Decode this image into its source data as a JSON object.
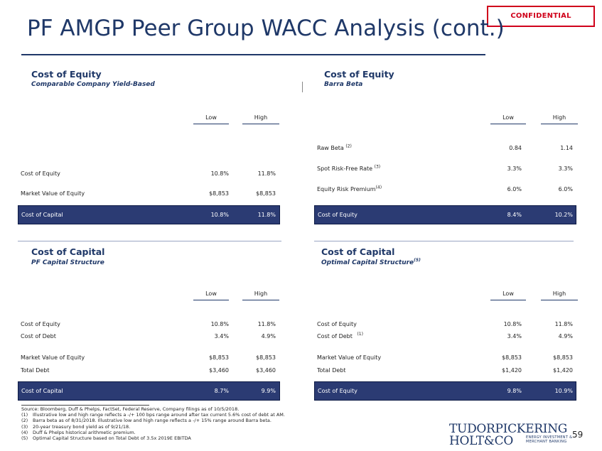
{
  "confidential": "CONFIDENTIAL",
  "title": "PF AMGP Peer Group WACC Analysis (cont.)",
  "cols": {
    "low": "Low",
    "high": "High"
  },
  "p1": {
    "heading": "Cost of Equity",
    "subheading": "Comparable Company Yield-Based",
    "rows": [
      {
        "label": "Cost of Equity",
        "low": "10.8%",
        "high": "11.8%"
      },
      {
        "label": "Market Value of Equity",
        "low": "$8,853",
        "high": "$8,853"
      }
    ],
    "total": {
      "label": "Cost of Capital",
      "low": "10.8%",
      "high": "11.8%"
    }
  },
  "p2": {
    "heading": "Cost of Equity",
    "subheading": "Barra Beta",
    "rows": [
      {
        "label": "Raw Beta",
        "sup": "(2)",
        "low": "0.84",
        "high": "1.14"
      },
      {
        "label": "Spot Risk-Free Rate",
        "sup": "(3)",
        "low": "3.3%",
        "high": "3.3%"
      },
      {
        "label": "Equity Risk Premium",
        "sup": "(4)",
        "low": "6.0%",
        "high": "6.0%"
      }
    ],
    "total": {
      "label": "Cost of Equity",
      "low": "8.4%",
      "high": "10.2%"
    }
  },
  "p3": {
    "heading": "Cost of Capital",
    "subheading": "PF Capital Structure",
    "rows": [
      {
        "label": "Cost of Equity",
        "low": "10.8%",
        "high": "11.8%"
      },
      {
        "label": "Cost of Debt",
        "low": "3.4%",
        "high": "4.9%"
      },
      {
        "label": "Market Value of Equity",
        "low": "$8,853",
        "high": "$8,853"
      },
      {
        "label": "Total Debt",
        "low": "$3,460",
        "high": "$3,460"
      }
    ],
    "total": {
      "label": "Cost of Capital",
      "low": "8.7%",
      "high": "9.9%"
    }
  },
  "p4": {
    "heading": "Cost of Capital",
    "subheading": "Optimal Capital Structure",
    "subheading_sup": "(5)",
    "rows": [
      {
        "label": "Cost of Equity",
        "low": "10.8%",
        "high": "11.8%"
      },
      {
        "label": "Cost of Debt",
        "sup": "(1)",
        "low": "3.4%",
        "high": "4.9%"
      },
      {
        "label": "Market Value of Equity",
        "low": "$8,853",
        "high": "$8,853"
      },
      {
        "label": "Total Debt",
        "low": "$1,420",
        "high": "$1,420"
      }
    ],
    "total": {
      "label": "Cost of Equity",
      "low": "9.8%",
      "high": "10.9%"
    }
  },
  "notes": {
    "source": "Source: Bloomberg, Duff & Phelps, FactSet, Federal Reserve, Company filings as of 10/5/2018.",
    "items": [
      {
        "num": "(1)",
        "text": "Illustrative low and high range reflects a -/+ 100 bps range around after tax current 5.6% cost of debt at AM."
      },
      {
        "num": "(2)",
        "text": "Barra beta as of 8/31/2018. Illustrative low and high range reflects a -/+ 15% range around Barra beta."
      },
      {
        "num": "(3)",
        "text": "20-year treasury bond yield as of 9/21/18."
      },
      {
        "num": "(4)",
        "text": "Duff & Phelps historical arithmetic premium."
      },
      {
        "num": "(5)",
        "text": "Optimal Capital Structure based on Total Debt of 3.5x 2019E EBITDA"
      }
    ]
  },
  "logo": {
    "line1": "TUDORPICKERING",
    "line2": "HOLT&CO",
    "sub1": "ENERGY INVESTMENT &",
    "sub2": "MERCHANT BANKING"
  },
  "page_number": "59"
}
